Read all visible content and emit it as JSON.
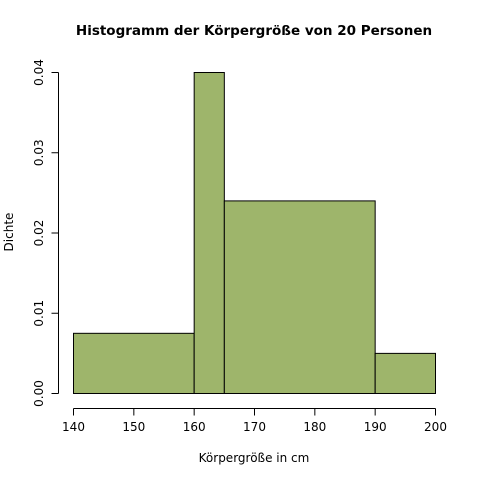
{
  "chart_data": {
    "type": "bar",
    "title": "Histogramm der Körpergröße von 20 Personen",
    "xlabel": "Körpergröße in cm",
    "ylabel": "Dichte",
    "bins": [
      {
        "from": 140,
        "to": 160,
        "density": 0.0075
      },
      {
        "from": 160,
        "to": 165,
        "density": 0.04
      },
      {
        "from": 165,
        "to": 190,
        "density": 0.024
      },
      {
        "from": 190,
        "to": 200,
        "density": 0.005
      }
    ],
    "xlim": [
      140,
      200
    ],
    "ylim": [
      0,
      0.04
    ],
    "x_ticks": [
      140,
      150,
      160,
      170,
      180,
      190,
      200
    ],
    "x_tick_labels": [
      "140",
      "150",
      "160",
      "170",
      "180",
      "190",
      "200"
    ],
    "y_ticks": [
      0,
      0.01,
      0.02,
      0.03,
      0.04
    ],
    "y_tick_labels": [
      "0.00",
      "0.01",
      "0.02",
      "0.03",
      "0.04"
    ],
    "bar_color": "#9eb56b",
    "grid": false,
    "legend": "none"
  }
}
